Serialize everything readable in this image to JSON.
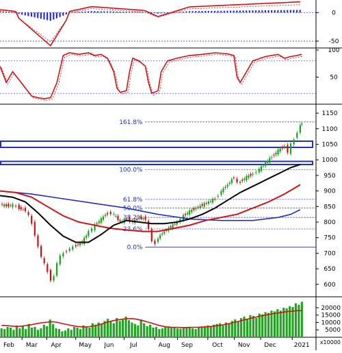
{
  "chart_data": {
    "type": "line",
    "months": [
      "Feb",
      "Mar",
      "Apr",
      "May",
      "Jun",
      "Jul",
      "Aug",
      "Sep",
      "Oct",
      "Nov",
      "Dec",
      "2021"
    ],
    "colors": {
      "price_up": "#17a317",
      "price_down": "#cc1111",
      "ma_fast": "#d11010",
      "ma_slow": "#000000",
      "ma_long": "#1f2fc0",
      "fib": "#1f2fc0",
      "macd_hist": "#2a2ad8",
      "volume": "#22a522",
      "grid": "#1f2fc0"
    },
    "macd_panel": {
      "y_ticks": [
        0,
        -50
      ],
      "ylim": [
        -62,
        22
      ]
    },
    "stoch_panel": {
      "y_ticks": [
        100,
        50
      ],
      "ylim": [
        0,
        100
      ],
      "guide_levels": [
        80,
        20
      ]
    },
    "price_panel": {
      "y_ticks": [
        1150,
        1100,
        1050,
        1000,
        950,
        900,
        850,
        800,
        750,
        700,
        650,
        600
      ],
      "ylim": [
        560,
        1170
      ],
      "fibonacci": [
        {
          "label": "161.8%",
          "value": 1122
        },
        {
          "label": "100.0%",
          "value": 968
        },
        {
          "label": "61.8%",
          "value": 873
        },
        {
          "label": "50.0%",
          "value": 845
        },
        {
          "label": "38.2%",
          "value": 815
        },
        {
          "label": "23.6%",
          "value": 778
        },
        {
          "label": "0.0%",
          "value": 720
        }
      ],
      "resistance_zones": [
        [
          1040,
          1060
        ],
        [
          985,
          995
        ]
      ],
      "close_series": [
        {
          "x": 0.0,
          "y": 858
        },
        {
          "x": 0.02,
          "y": 852
        },
        {
          "x": 0.04,
          "y": 855
        },
        {
          "x": 0.06,
          "y": 845
        },
        {
          "x": 0.08,
          "y": 838
        },
        {
          "x": 0.09,
          "y": 820
        },
        {
          "x": 0.1,
          "y": 795
        },
        {
          "x": 0.11,
          "y": 760
        },
        {
          "x": 0.12,
          "y": 720
        },
        {
          "x": 0.13,
          "y": 690
        },
        {
          "x": 0.14,
          "y": 665
        },
        {
          "x": 0.15,
          "y": 640
        },
        {
          "x": 0.16,
          "y": 615
        },
        {
          "x": 0.17,
          "y": 625
        },
        {
          "x": 0.18,
          "y": 670
        },
        {
          "x": 0.19,
          "y": 690
        },
        {
          "x": 0.2,
          "y": 700
        },
        {
          "x": 0.22,
          "y": 715
        },
        {
          "x": 0.24,
          "y": 725
        },
        {
          "x": 0.26,
          "y": 735
        },
        {
          "x": 0.28,
          "y": 770
        },
        {
          "x": 0.3,
          "y": 790
        },
        {
          "x": 0.32,
          "y": 810
        },
        {
          "x": 0.34,
          "y": 830
        },
        {
          "x": 0.36,
          "y": 825
        },
        {
          "x": 0.38,
          "y": 800
        },
        {
          "x": 0.4,
          "y": 810
        },
        {
          "x": 0.42,
          "y": 800
        },
        {
          "x": 0.44,
          "y": 815
        },
        {
          "x": 0.46,
          "y": 810
        },
        {
          "x": 0.48,
          "y": 740
        },
        {
          "x": 0.49,
          "y": 730
        },
        {
          "x": 0.5,
          "y": 750
        },
        {
          "x": 0.52,
          "y": 770
        },
        {
          "x": 0.54,
          "y": 785
        },
        {
          "x": 0.56,
          "y": 800
        },
        {
          "x": 0.58,
          "y": 820
        },
        {
          "x": 0.6,
          "y": 835
        },
        {
          "x": 0.62,
          "y": 845
        },
        {
          "x": 0.64,
          "y": 855
        },
        {
          "x": 0.66,
          "y": 865
        },
        {
          "x": 0.68,
          "y": 875
        },
        {
          "x": 0.7,
          "y": 900
        },
        {
          "x": 0.72,
          "y": 920
        },
        {
          "x": 0.74,
          "y": 945
        },
        {
          "x": 0.75,
          "y": 925
        },
        {
          "x": 0.76,
          "y": 930
        },
        {
          "x": 0.78,
          "y": 945
        },
        {
          "x": 0.8,
          "y": 955
        },
        {
          "x": 0.82,
          "y": 970
        },
        {
          "x": 0.84,
          "y": 990
        },
        {
          "x": 0.86,
          "y": 1010
        },
        {
          "x": 0.88,
          "y": 1030
        },
        {
          "x": 0.9,
          "y": 1045
        },
        {
          "x": 0.91,
          "y": 1025
        },
        {
          "x": 0.92,
          "y": 1050
        },
        {
          "x": 0.93,
          "y": 1065
        },
        {
          "x": 0.94,
          "y": 1090
        },
        {
          "x": 0.95,
          "y": 1110
        },
        {
          "x": 0.955,
          "y": 1118
        }
      ],
      "ma_fast": [
        {
          "x": 0.0,
          "y": 900
        },
        {
          "x": 0.05,
          "y": 895
        },
        {
          "x": 0.1,
          "y": 880
        },
        {
          "x": 0.15,
          "y": 850
        },
        {
          "x": 0.2,
          "y": 820
        },
        {
          "x": 0.25,
          "y": 800
        },
        {
          "x": 0.3,
          "y": 790
        },
        {
          "x": 0.35,
          "y": 780
        },
        {
          "x": 0.4,
          "y": 775
        },
        {
          "x": 0.45,
          "y": 770
        },
        {
          "x": 0.5,
          "y": 770
        },
        {
          "x": 0.55,
          "y": 780
        },
        {
          "x": 0.6,
          "y": 790
        },
        {
          "x": 0.65,
          "y": 805
        },
        {
          "x": 0.7,
          "y": 815
        },
        {
          "x": 0.75,
          "y": 825
        },
        {
          "x": 0.8,
          "y": 845
        },
        {
          "x": 0.85,
          "y": 865
        },
        {
          "x": 0.9,
          "y": 890
        },
        {
          "x": 0.95,
          "y": 920
        }
      ],
      "ma_slow": [
        {
          "x": 0.0,
          "y": 885
        },
        {
          "x": 0.04,
          "y": 880
        },
        {
          "x": 0.08,
          "y": 865
        },
        {
          "x": 0.12,
          "y": 830
        },
        {
          "x": 0.16,
          "y": 790
        },
        {
          "x": 0.2,
          "y": 755
        },
        {
          "x": 0.24,
          "y": 735
        },
        {
          "x": 0.28,
          "y": 735
        },
        {
          "x": 0.32,
          "y": 760
        },
        {
          "x": 0.36,
          "y": 790
        },
        {
          "x": 0.4,
          "y": 805
        },
        {
          "x": 0.44,
          "y": 800
        },
        {
          "x": 0.48,
          "y": 795
        },
        {
          "x": 0.52,
          "y": 795
        },
        {
          "x": 0.56,
          "y": 800
        },
        {
          "x": 0.6,
          "y": 810
        },
        {
          "x": 0.64,
          "y": 825
        },
        {
          "x": 0.68,
          "y": 845
        },
        {
          "x": 0.72,
          "y": 870
        },
        {
          "x": 0.76,
          "y": 895
        },
        {
          "x": 0.8,
          "y": 915
        },
        {
          "x": 0.84,
          "y": 935
        },
        {
          "x": 0.88,
          "y": 955
        },
        {
          "x": 0.92,
          "y": 975
        },
        {
          "x": 0.95,
          "y": 985
        }
      ],
      "ma_long": [
        {
          "x": 0.0,
          "y": 900
        },
        {
          "x": 0.1,
          "y": 890
        },
        {
          "x": 0.2,
          "y": 875
        },
        {
          "x": 0.3,
          "y": 860
        },
        {
          "x": 0.4,
          "y": 845
        },
        {
          "x": 0.5,
          "y": 825
        },
        {
          "x": 0.6,
          "y": 810
        },
        {
          "x": 0.7,
          "y": 805
        },
        {
          "x": 0.8,
          "y": 805
        },
        {
          "x": 0.88,
          "y": 815
        },
        {
          "x": 0.92,
          "y": 825
        },
        {
          "x": 0.95,
          "y": 840
        }
      ]
    },
    "volume_panel": {
      "y_ticks": [
        20000,
        15000,
        10000,
        5000
      ],
      "unit_label": "x10000",
      "ylim": [
        0,
        26000
      ],
      "values": [
        6000,
        5500,
        7000,
        6500,
        5000,
        8000,
        6000,
        7500,
        5500,
        9000,
        6500,
        7000,
        5000,
        6000,
        8500,
        7500,
        12000,
        9000,
        6000,
        5500,
        4000,
        4500,
        6000,
        5000,
        7000,
        6500,
        5500,
        8000,
        7000,
        6500,
        9500,
        8500,
        10000,
        9000,
        11000,
        12500,
        10500,
        9500,
        13000,
        11000,
        12000,
        14000,
        11500,
        10000,
        9000,
        8000,
        12000,
        9500,
        7500,
        8500,
        6500,
        7000,
        5500,
        6000,
        6800,
        7200,
        6400,
        7000,
        6000,
        5800,
        6200,
        6500,
        7000,
        6000,
        5500,
        6800,
        7200,
        7500,
        8000,
        7000,
        8500,
        9000,
        9500,
        8000,
        10000,
        9500,
        11000,
        12000,
        10500,
        13000,
        14000,
        12500,
        15000,
        14500,
        13000,
        16000,
        15500,
        17000,
        16500,
        18000,
        17500,
        19000,
        18000,
        20000,
        19500,
        21000,
        20500,
        23000,
        22000,
        24000
      ],
      "ma_values": [
        8000,
        8000,
        7800,
        7600,
        7400,
        7300,
        7400,
        7600,
        7900,
        8200,
        8500,
        9000,
        9400,
        9700,
        10000,
        10200,
        10400,
        10500,
        10200,
        9800,
        9300,
        8800,
        8400,
        8000,
        7600,
        7300,
        7100,
        7000,
        7000,
        7200,
        7500,
        7900,
        8400,
        9000,
        9600,
        10200,
        10800,
        11300,
        11700,
        12000,
        12300,
        12500,
        12600,
        12600,
        12400,
        12000,
        11500,
        11000,
        10400,
        9800,
        9200,
        8600,
        8000,
        7500,
        7100,
        6900,
        6800,
        6700,
        6700,
        6600,
        6600,
        6600,
        6700,
        6700,
        6700,
        6800,
        6900,
        7000,
        7100,
        7300,
        7500,
        7800,
        8100,
        8400,
        8800,
        9200,
        9700,
        10200,
        10700,
        11200,
        11700,
        12200,
        12700,
        13200,
        13700,
        14200,
        14600,
        15000,
        15400,
        15800,
        16100,
        16400,
        16700,
        17000,
        17300,
        17500,
        17700,
        17900,
        18000,
        18100
      ]
    }
  }
}
